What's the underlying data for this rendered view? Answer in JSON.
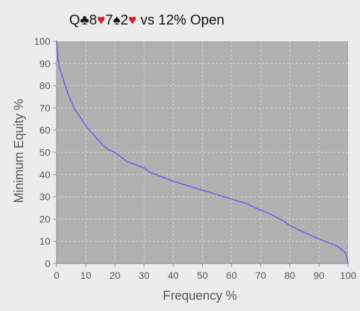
{
  "chart_data": {
    "type": "line",
    "title": {
      "segments": [
        {
          "text": "Q",
          "color": "#111111"
        },
        {
          "text": "♣",
          "color": "#111111"
        },
        {
          "text": "8",
          "color": "#111111"
        },
        {
          "text": "♥",
          "color": "#e0191f"
        },
        {
          "text": "7",
          "color": "#111111"
        },
        {
          "text": "♠",
          "color": "#111111"
        },
        {
          "text": "2",
          "color": "#111111"
        },
        {
          "text": "♥",
          "color": "#e0191f"
        },
        {
          "text": " vs 12% Open",
          "color": "#111111"
        }
      ]
    },
    "xlabel": "Frequency %",
    "ylabel": "Minimum Equity %",
    "xlim": [
      0,
      100
    ],
    "ylim": [
      0,
      100
    ],
    "xticks": [
      0,
      10,
      20,
      30,
      40,
      50,
      60,
      70,
      80,
      90,
      100
    ],
    "yticks": [
      0,
      10,
      20,
      30,
      40,
      50,
      60,
      70,
      80,
      90,
      100
    ],
    "grid": true,
    "colors": {
      "background": "#ececec",
      "plot_background": "#b0b0b0",
      "grid": "#d7d7d7",
      "axis": "#8a8a8a",
      "tick_label": "#555555",
      "axis_label": "#555555",
      "line": "#6a5fe6"
    },
    "series": [
      {
        "x": [
          0,
          0.5,
          1,
          2,
          3,
          4,
          5,
          6,
          8,
          10,
          12,
          14,
          16,
          18,
          20,
          22,
          24,
          26,
          28,
          30,
          32,
          34,
          36,
          40,
          45,
          50,
          55,
          60,
          65,
          70,
          72,
          75,
          78,
          80,
          85,
          90,
          92,
          94,
          96,
          98,
          99,
          99.5,
          100
        ],
        "y": [
          100,
          92,
          88,
          84,
          80,
          76,
          73,
          70,
          66,
          62,
          59,
          56,
          53,
          51,
          50,
          48,
          46,
          45,
          44,
          43,
          41,
          40,
          39,
          37,
          35,
          33,
          31,
          29,
          27,
          24,
          23,
          21,
          19,
          17,
          14,
          11,
          10,
          9,
          8,
          6,
          5,
          3,
          0
        ]
      }
    ]
  }
}
